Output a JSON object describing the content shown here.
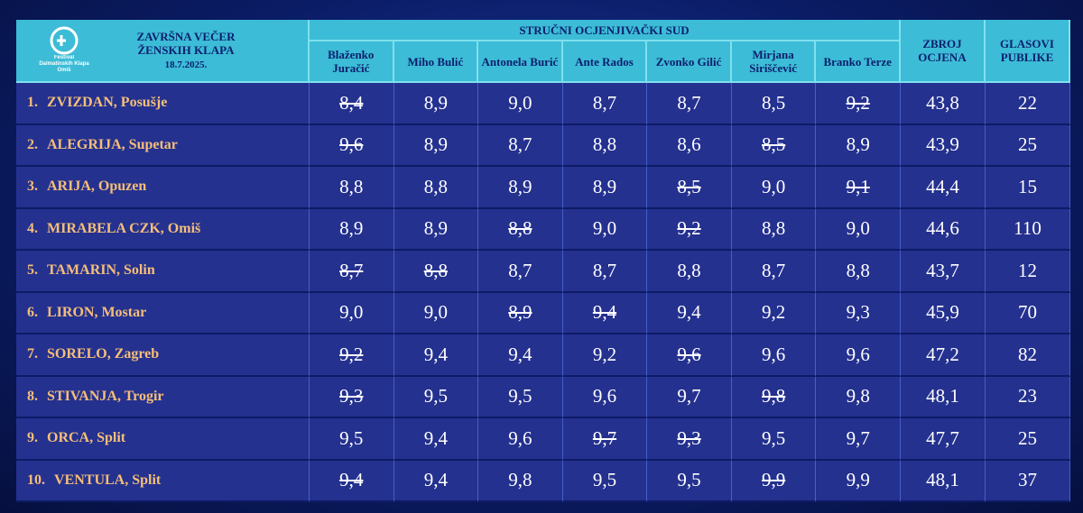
{
  "header": {
    "logo_text": "Festival Dalmatinskih Klapa Omiš",
    "title": "ZAVRŠNA VEČER ŽENSKIH KLAPA",
    "date": "18.7.2025.",
    "jury": "STRUČNI OCJENJIVAČKI SUD",
    "judges": [
      "Blaženko Juračić",
      "Miho Bulić",
      "Antonela Burić",
      "Ante Rados",
      "Zvonko Gilić",
      "Mirjana Siriščević",
      "Branko Terze"
    ],
    "sum": "ZBROJ OCJENA",
    "votes": "GLASOVI PUBLIKE"
  },
  "table": {
    "rows": [
      {
        "rank": "1.",
        "name": "ZVIZDAN, Posušje",
        "scores": [
          "8,4",
          "8,9",
          "9,0",
          "8,7",
          "8,7",
          "8,5",
          "9,2"
        ],
        "struck": [
          0,
          6
        ],
        "sum": "43,8",
        "votes": "22"
      },
      {
        "rank": "2.",
        "name": "ALEGRIJA, Supetar",
        "scores": [
          "9,6",
          "8,9",
          "8,7",
          "8,8",
          "8,6",
          "8,5",
          "8,9"
        ],
        "struck": [
          0,
          5
        ],
        "sum": "43,9",
        "votes": "25"
      },
      {
        "rank": "3.",
        "name": "ARIJA, Opuzen",
        "scores": [
          "8,8",
          "8,8",
          "8,9",
          "8,9",
          "8,5",
          "9,0",
          "9,1"
        ],
        "struck": [
          4,
          6
        ],
        "sum": "44,4",
        "votes": "15"
      },
      {
        "rank": "4.",
        "name": "MIRABELA CZK, Omiš",
        "scores": [
          "8,9",
          "8,9",
          "8,8",
          "9,0",
          "9,2",
          "8,8",
          "9,0"
        ],
        "struck": [
          2,
          4
        ],
        "sum": "44,6",
        "votes": "110"
      },
      {
        "rank": "5.",
        "name": "TAMARIN, Solin",
        "scores": [
          "8,7",
          "8,8",
          "8,7",
          "8,7",
          "8,8",
          "8,7",
          "8,8"
        ],
        "struck": [
          0,
          1
        ],
        "sum": "43,7",
        "votes": "12"
      },
      {
        "rank": "6.",
        "name": "LIRON, Mostar",
        "scores": [
          "9,0",
          "9,0",
          "8,9",
          "9,4",
          "9,4",
          "9,2",
          "9,3"
        ],
        "struck": [
          2,
          3
        ],
        "sum": "45,9",
        "votes": "70"
      },
      {
        "rank": "7.",
        "name": "SORELO, Zagreb",
        "scores": [
          "9,2",
          "9,4",
          "9,4",
          "9,2",
          "9,6",
          "9,6",
          "9,6"
        ],
        "struck": [
          0,
          4
        ],
        "sum": "47,2",
        "votes": "82"
      },
      {
        "rank": "8.",
        "name": "STIVANJA, Trogir",
        "scores": [
          "9,3",
          "9,5",
          "9,5",
          "9,6",
          "9,7",
          "9,8",
          "9,8"
        ],
        "struck": [
          0,
          5
        ],
        "sum": "48,1",
        "votes": "23"
      },
      {
        "rank": "9.",
        "name": "ORCA, Split",
        "scores": [
          "9,5",
          "9,4",
          "9,6",
          "9,7",
          "9,3",
          "9,5",
          "9,7"
        ],
        "struck": [
          3,
          4
        ],
        "sum": "47,7",
        "votes": "25"
      },
      {
        "rank": "10.",
        "name": "VENTULA, Split",
        "scores": [
          "9,4",
          "9,4",
          "9,8",
          "9,5",
          "9,5",
          "9,9",
          "9,9"
        ],
        "struck": [
          0,
          5
        ],
        "sum": "48,1",
        "votes": "37"
      }
    ]
  }
}
